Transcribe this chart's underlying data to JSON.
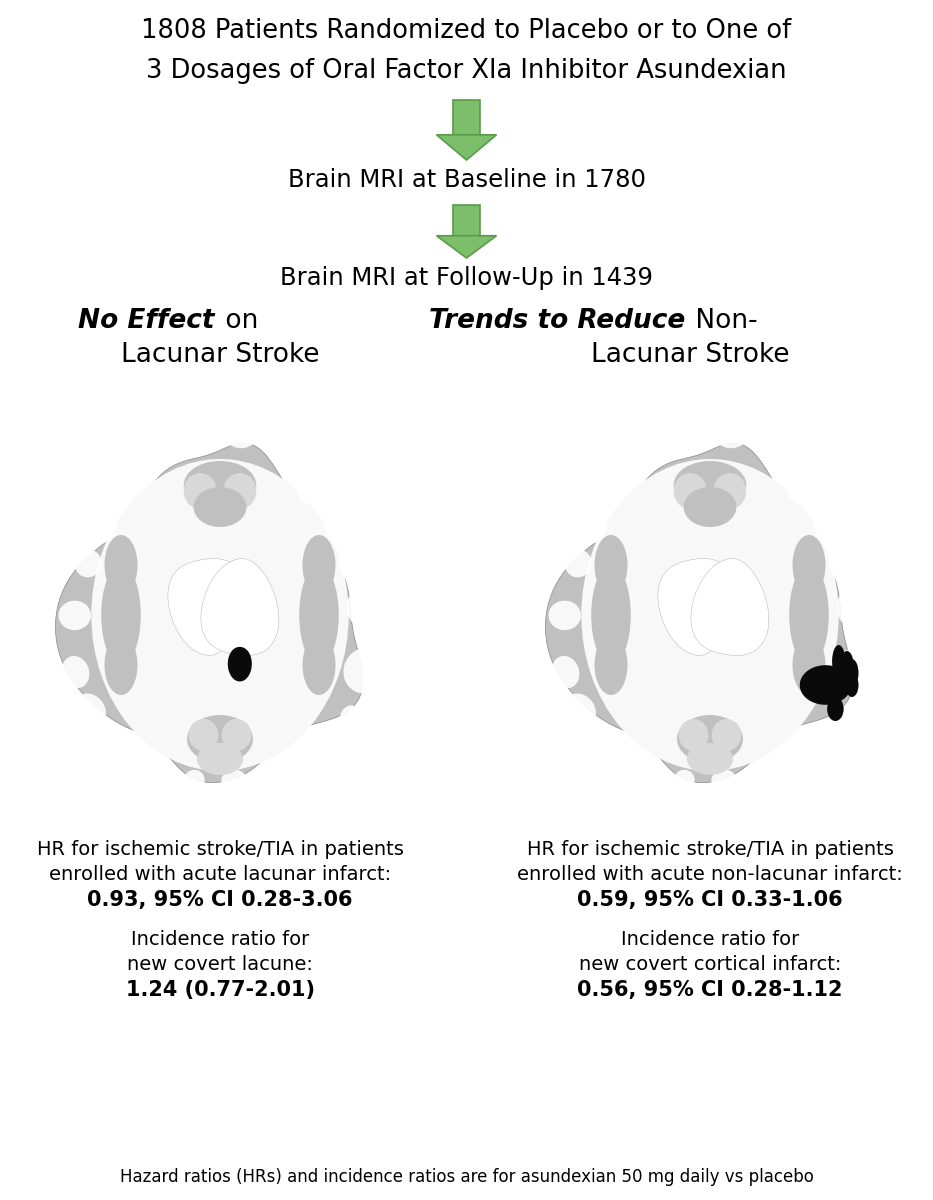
{
  "title_line1": "1808 Patients Randomized to Placebo or to One of",
  "title_line2": "3 Dosages of Oral Factor XIa Inhibitor Asundexian",
  "arrow_color": "#7BBF6A",
  "arrow_edge_color": "#5A9A4A",
  "text_baseline": "Brain MRI at Baseline in 1780",
  "text_followup": "Brain MRI at Follow-Up in 1439",
  "left_heading_bold": "No Effect",
  "left_heading_on": "on",
  "left_heading_normal": "Lacunar Stroke",
  "right_heading_bold": "Trends to Reduce",
  "right_heading_non": "Non-",
  "right_heading_normal": "Lacunar Stroke",
  "left_hr_line1": "HR for ischemic stroke/TIA in patients",
  "left_hr_line2": "enrolled with acute lacunar infarct:",
  "left_hr_line3": "0.93, 95% CI 0.28-3.06",
  "left_ir_line1": "Incidence ratio for",
  "left_ir_line2": "new covert lacune:",
  "left_ir_line3": "1.24 (0.77-2.01)",
  "right_hr_line1": "HR for ischemic stroke/TIA in patients",
  "right_hr_line2": "enrolled with acute non-lacunar infarct:",
  "right_hr_line3": "0.59, 95% CI 0.33-1.06",
  "right_ir_line1": "Incidence ratio for",
  "right_ir_line2": "new covert cortical infarct:",
  "right_ir_line3": "0.56, 95% CI 0.28-1.12",
  "footnote": "Hazard ratios (HRs) and incidence ratios are for asundexian 50 mg daily vs placebo",
  "bg_color": "#FFFFFF",
  "text_color": "#000000",
  "brain_gray": "#C0C0C0",
  "brain_light": "#E8E8E8",
  "brain_white": "#F8F8F8",
  "infarct_color": "#0A0A0A"
}
